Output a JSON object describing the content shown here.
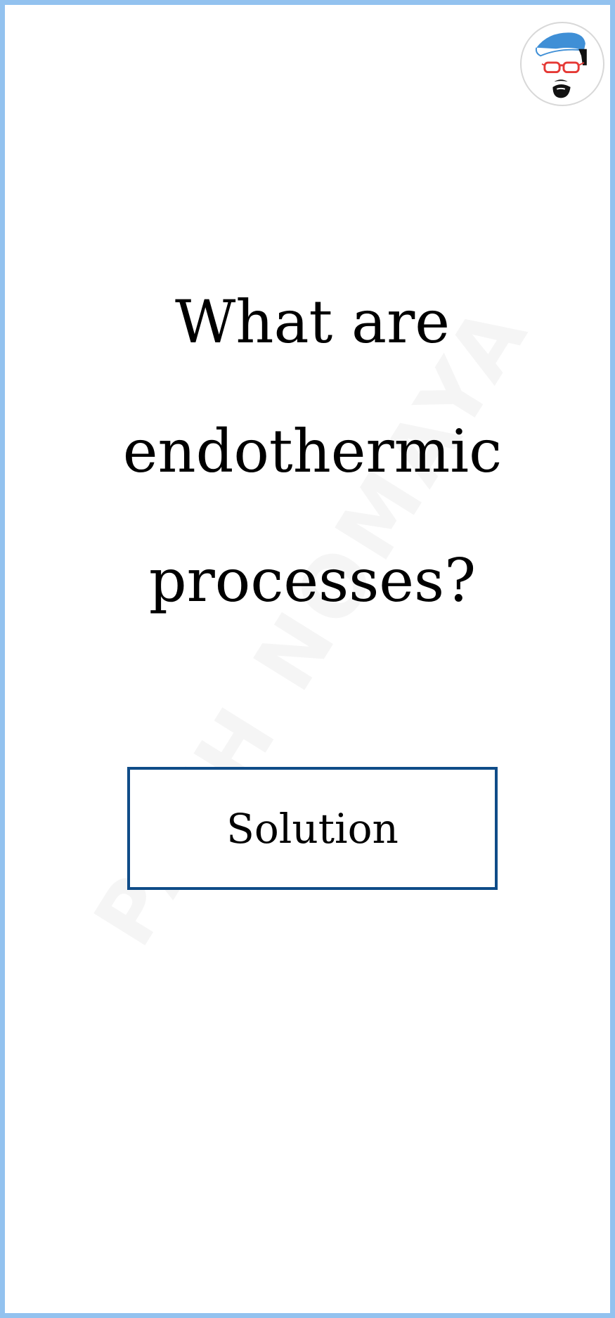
{
  "watermark": {
    "text": "PATH NOMAYA"
  },
  "avatar": {
    "icon": "cartoon-avatar-icon"
  },
  "question": {
    "lines": [
      "What are",
      "endothermic",
      "processes?"
    ]
  },
  "solution_button": {
    "label": "Solution"
  },
  "colors": {
    "frame": "#93c2ef",
    "button_border": "#0f4c88",
    "text": "#000000"
  }
}
